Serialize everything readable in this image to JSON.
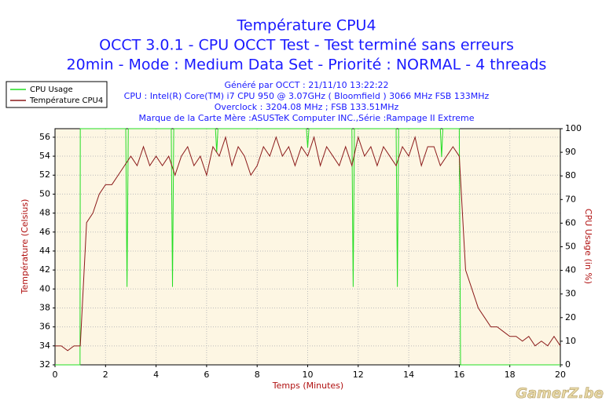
{
  "chart_data": {
    "type": "line",
    "title": "Température CPU4",
    "subtitle": [
      "OCCT 3.0.1 - CPU OCCT Test - Test terminé sans erreurs",
      "20min - Mode : Medium Data Set - Priorité : NORMAL - 4 threads"
    ],
    "info": [
      "Généré par OCCT : 21/11/10 13:22:22",
      "CPU : Intel(R) Core(TM) i7 CPU 950 @ 3.07GHz ( Bloomfield ) 3066 MHz FSB 133MHz",
      "Overclock : 3204.08 MHz ; FSB 133.51MHz",
      "Marque de la Carte Mère :ASUSTeK Computer INC.,Série :Rampage II Extreme"
    ],
    "x_label": "Temps (Minutes)",
    "y_label": "Température (Celsius)",
    "y2_label": "CPU Usage (in %)",
    "watermark": "GamerZ.be",
    "xlim": [
      0,
      20
    ],
    "xticks": [
      0,
      2,
      4,
      6,
      8,
      10,
      12,
      14,
      16,
      18,
      20
    ],
    "ylim": [
      32,
      56.9
    ],
    "yticks": [
      32,
      34,
      36,
      38,
      40,
      42,
      44,
      46,
      48,
      50,
      52,
      54,
      56
    ],
    "y2lim": [
      0,
      100
    ],
    "y2ticks": [
      0,
      10,
      20,
      30,
      40,
      50,
      60,
      70,
      80,
      90,
      100
    ],
    "grid": true,
    "series": [
      {
        "name": "CPU Usage",
        "color": "#22dd22",
        "axis": "y2",
        "x": [
          0,
          0.99,
          1.0,
          2.8,
          2.85,
          2.9,
          4.6,
          4.65,
          4.7,
          6.35,
          6.4,
          6.45,
          9.95,
          10.0,
          10.05,
          11.75,
          11.8,
          11.85,
          13.5,
          13.55,
          13.6,
          15.25,
          15.3,
          15.35,
          16.0,
          16.05,
          20
        ],
        "values": [
          0,
          0,
          100,
          100,
          33,
          100,
          100,
          33,
          100,
          100,
          90,
          100,
          100,
          92,
          100,
          100,
          33,
          100,
          100,
          33,
          100,
          100,
          88,
          100,
          100,
          0,
          0
        ]
      },
      {
        "name": "Température CPU4",
        "color": "#8b1a1a",
        "x": [
          0,
          0.25,
          0.5,
          0.75,
          1.0,
          1.25,
          1.5,
          1.75,
          2.0,
          2.25,
          2.5,
          2.75,
          3.0,
          3.25,
          3.5,
          3.75,
          4.0,
          4.25,
          4.5,
          4.75,
          5.0,
          5.25,
          5.5,
          5.75,
          6.0,
          6.25,
          6.5,
          6.75,
          7.0,
          7.25,
          7.5,
          7.75,
          8.0,
          8.25,
          8.5,
          8.75,
          9.0,
          9.25,
          9.5,
          9.75,
          10.0,
          10.25,
          10.5,
          10.75,
          11.0,
          11.25,
          11.5,
          11.75,
          12.0,
          12.25,
          12.5,
          12.75,
          13.0,
          13.25,
          13.5,
          13.75,
          14.0,
          14.25,
          14.5,
          14.75,
          15.0,
          15.25,
          15.5,
          15.75,
          16.0,
          16.25,
          16.5,
          16.75,
          17.0,
          17.25,
          17.5,
          17.75,
          18.0,
          18.25,
          18.5,
          18.75,
          19.0,
          19.25,
          19.5,
          19.75,
          20.0
        ],
        "values": [
          34,
          34,
          33.5,
          34,
          34,
          47,
          48,
          50,
          51,
          51,
          52,
          53,
          54,
          53,
          55,
          53,
          54,
          53,
          54,
          52,
          54,
          55,
          53,
          54,
          52,
          55,
          54,
          56,
          53,
          55,
          54,
          52,
          53,
          55,
          54,
          56,
          54,
          55,
          53,
          55,
          54,
          56,
          53,
          55,
          54,
          53,
          55,
          53,
          56,
          54,
          55,
          53,
          55,
          54,
          53,
          55,
          54,
          56,
          53,
          55,
          55,
          53,
          54,
          55,
          54,
          42,
          40,
          38,
          37,
          36,
          36,
          35.5,
          35,
          35,
          34.5,
          35,
          34,
          34.5,
          34,
          35,
          34
        ]
      }
    ]
  }
}
